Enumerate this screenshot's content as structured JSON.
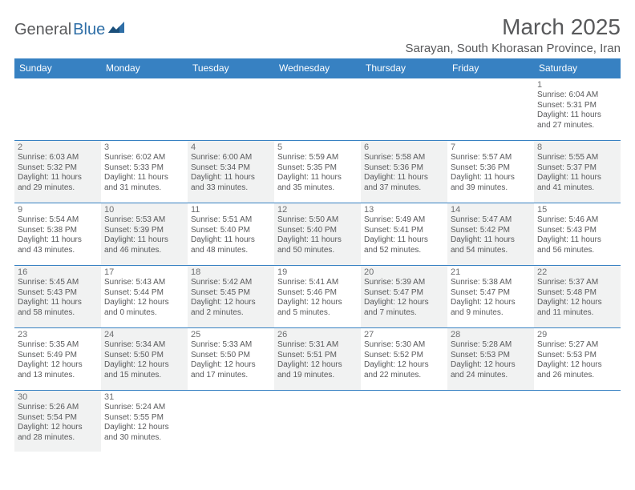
{
  "logo": {
    "part1": "General",
    "part2": "Blue"
  },
  "title": "March 2025",
  "location": "Sarayan, South Khorasan Province, Iran",
  "weekdays": [
    "Sunday",
    "Monday",
    "Tuesday",
    "Wednesday",
    "Thursday",
    "Friday",
    "Saturday"
  ],
  "colors": {
    "header_bg": "#3781c2",
    "header_text": "#ffffff",
    "cell_border": "#3781c2",
    "shaded_bg": "#f1f2f2",
    "daynum_color": "#6d6e70",
    "info_color": "#58595b",
    "title_color": "#58595b"
  },
  "weeks": [
    [
      null,
      null,
      null,
      null,
      null,
      null,
      {
        "n": "1",
        "sr": "Sunrise: 6:04 AM",
        "ss": "Sunset: 5:31 PM",
        "d1": "Daylight: 11 hours",
        "d2": "and 27 minutes."
      }
    ],
    [
      {
        "n": "2",
        "sr": "Sunrise: 6:03 AM",
        "ss": "Sunset: 5:32 PM",
        "d1": "Daylight: 11 hours",
        "d2": "and 29 minutes."
      },
      {
        "n": "3",
        "sr": "Sunrise: 6:02 AM",
        "ss": "Sunset: 5:33 PM",
        "d1": "Daylight: 11 hours",
        "d2": "and 31 minutes."
      },
      {
        "n": "4",
        "sr": "Sunrise: 6:00 AM",
        "ss": "Sunset: 5:34 PM",
        "d1": "Daylight: 11 hours",
        "d2": "and 33 minutes."
      },
      {
        "n": "5",
        "sr": "Sunrise: 5:59 AM",
        "ss": "Sunset: 5:35 PM",
        "d1": "Daylight: 11 hours",
        "d2": "and 35 minutes."
      },
      {
        "n": "6",
        "sr": "Sunrise: 5:58 AM",
        "ss": "Sunset: 5:36 PM",
        "d1": "Daylight: 11 hours",
        "d2": "and 37 minutes."
      },
      {
        "n": "7",
        "sr": "Sunrise: 5:57 AM",
        "ss": "Sunset: 5:36 PM",
        "d1": "Daylight: 11 hours",
        "d2": "and 39 minutes."
      },
      {
        "n": "8",
        "sr": "Sunrise: 5:55 AM",
        "ss": "Sunset: 5:37 PM",
        "d1": "Daylight: 11 hours",
        "d2": "and 41 minutes."
      }
    ],
    [
      {
        "n": "9",
        "sr": "Sunrise: 5:54 AM",
        "ss": "Sunset: 5:38 PM",
        "d1": "Daylight: 11 hours",
        "d2": "and 43 minutes."
      },
      {
        "n": "10",
        "sr": "Sunrise: 5:53 AM",
        "ss": "Sunset: 5:39 PM",
        "d1": "Daylight: 11 hours",
        "d2": "and 46 minutes."
      },
      {
        "n": "11",
        "sr": "Sunrise: 5:51 AM",
        "ss": "Sunset: 5:40 PM",
        "d1": "Daylight: 11 hours",
        "d2": "and 48 minutes."
      },
      {
        "n": "12",
        "sr": "Sunrise: 5:50 AM",
        "ss": "Sunset: 5:40 PM",
        "d1": "Daylight: 11 hours",
        "d2": "and 50 minutes."
      },
      {
        "n": "13",
        "sr": "Sunrise: 5:49 AM",
        "ss": "Sunset: 5:41 PM",
        "d1": "Daylight: 11 hours",
        "d2": "and 52 minutes."
      },
      {
        "n": "14",
        "sr": "Sunrise: 5:47 AM",
        "ss": "Sunset: 5:42 PM",
        "d1": "Daylight: 11 hours",
        "d2": "and 54 minutes."
      },
      {
        "n": "15",
        "sr": "Sunrise: 5:46 AM",
        "ss": "Sunset: 5:43 PM",
        "d1": "Daylight: 11 hours",
        "d2": "and 56 minutes."
      }
    ],
    [
      {
        "n": "16",
        "sr": "Sunrise: 5:45 AM",
        "ss": "Sunset: 5:43 PM",
        "d1": "Daylight: 11 hours",
        "d2": "and 58 minutes."
      },
      {
        "n": "17",
        "sr": "Sunrise: 5:43 AM",
        "ss": "Sunset: 5:44 PM",
        "d1": "Daylight: 12 hours",
        "d2": "and 0 minutes."
      },
      {
        "n": "18",
        "sr": "Sunrise: 5:42 AM",
        "ss": "Sunset: 5:45 PM",
        "d1": "Daylight: 12 hours",
        "d2": "and 2 minutes."
      },
      {
        "n": "19",
        "sr": "Sunrise: 5:41 AM",
        "ss": "Sunset: 5:46 PM",
        "d1": "Daylight: 12 hours",
        "d2": "and 5 minutes."
      },
      {
        "n": "20",
        "sr": "Sunrise: 5:39 AM",
        "ss": "Sunset: 5:47 PM",
        "d1": "Daylight: 12 hours",
        "d2": "and 7 minutes."
      },
      {
        "n": "21",
        "sr": "Sunrise: 5:38 AM",
        "ss": "Sunset: 5:47 PM",
        "d1": "Daylight: 12 hours",
        "d2": "and 9 minutes."
      },
      {
        "n": "22",
        "sr": "Sunrise: 5:37 AM",
        "ss": "Sunset: 5:48 PM",
        "d1": "Daylight: 12 hours",
        "d2": "and 11 minutes."
      }
    ],
    [
      {
        "n": "23",
        "sr": "Sunrise: 5:35 AM",
        "ss": "Sunset: 5:49 PM",
        "d1": "Daylight: 12 hours",
        "d2": "and 13 minutes."
      },
      {
        "n": "24",
        "sr": "Sunrise: 5:34 AM",
        "ss": "Sunset: 5:50 PM",
        "d1": "Daylight: 12 hours",
        "d2": "and 15 minutes."
      },
      {
        "n": "25",
        "sr": "Sunrise: 5:33 AM",
        "ss": "Sunset: 5:50 PM",
        "d1": "Daylight: 12 hours",
        "d2": "and 17 minutes."
      },
      {
        "n": "26",
        "sr": "Sunrise: 5:31 AM",
        "ss": "Sunset: 5:51 PM",
        "d1": "Daylight: 12 hours",
        "d2": "and 19 minutes."
      },
      {
        "n": "27",
        "sr": "Sunrise: 5:30 AM",
        "ss": "Sunset: 5:52 PM",
        "d1": "Daylight: 12 hours",
        "d2": "and 22 minutes."
      },
      {
        "n": "28",
        "sr": "Sunrise: 5:28 AM",
        "ss": "Sunset: 5:53 PM",
        "d1": "Daylight: 12 hours",
        "d2": "and 24 minutes."
      },
      {
        "n": "29",
        "sr": "Sunrise: 5:27 AM",
        "ss": "Sunset: 5:53 PM",
        "d1": "Daylight: 12 hours",
        "d2": "and 26 minutes."
      }
    ],
    [
      {
        "n": "30",
        "sr": "Sunrise: 5:26 AM",
        "ss": "Sunset: 5:54 PM",
        "d1": "Daylight: 12 hours",
        "d2": "and 28 minutes."
      },
      {
        "n": "31",
        "sr": "Sunrise: 5:24 AM",
        "ss": "Sunset: 5:55 PM",
        "d1": "Daylight: 12 hours",
        "d2": "and 30 minutes."
      },
      null,
      null,
      null,
      null,
      null
    ]
  ]
}
